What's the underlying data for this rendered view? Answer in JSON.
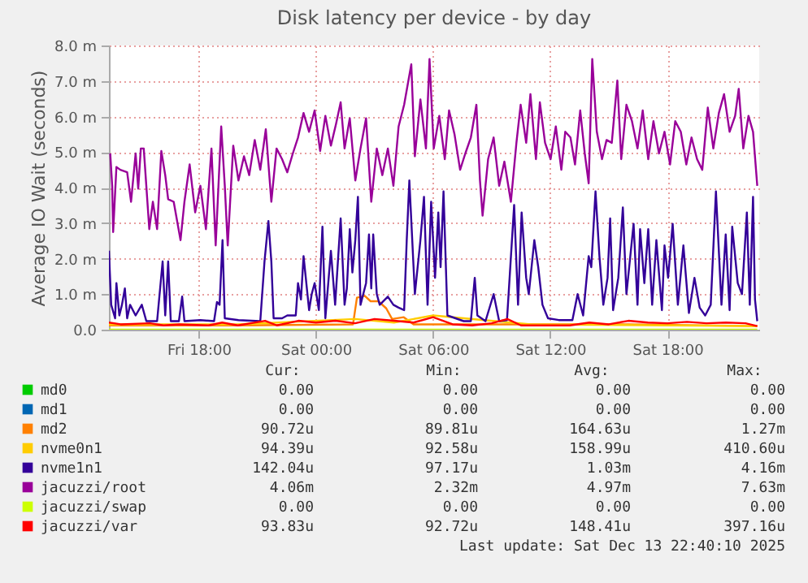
{
  "chart_data": {
    "type": "line",
    "title": "Disk latency per device - by day",
    "ylabel": "Average IO Wait (seconds)",
    "xlim": [
      "2025-12-12T13:24",
      "2025-12-13T22:42"
    ],
    "ylim": [
      0,
      8
    ],
    "xticks": [
      {
        "value": "2025-12-12T18:00",
        "label": "Fri 18:00"
      },
      {
        "value": "2025-12-13T00:00",
        "label": "Sat 00:00"
      },
      {
        "value": "2025-12-13T06:00",
        "label": "Sat 06:00"
      },
      {
        "value": "2025-12-13T12:00",
        "label": "Sat 12:00"
      },
      {
        "value": "2025-12-13T18:00",
        "label": "Sat 18:00"
      }
    ],
    "yticks": [
      {
        "value": 0,
        "label": "0.0"
      },
      {
        "value": 1,
        "label": "1.0 m"
      },
      {
        "value": 2,
        "label": "2.0 m"
      },
      {
        "value": 3,
        "label": "3.0 m"
      },
      {
        "value": 4,
        "label": "4.0 m"
      },
      {
        "value": 5,
        "label": "5.0 m"
      },
      {
        "value": 6,
        "label": "6.0 m"
      },
      {
        "value": 7,
        "label": "7.0 m"
      },
      {
        "value": 8,
        "label": "8.0 m"
      }
    ],
    "grid": true,
    "legend": "bottom",
    "marker": "none",
    "line_style": "solid",
    "series": [
      {
        "name": "md0",
        "color": "#00cc00"
      },
      {
        "name": "md1",
        "color": "#0066b3"
      },
      {
        "name": "md2",
        "color": "#ff8000",
        "x": [
          "2025-12-12T13:24",
          "2025-12-12T20:00",
          "2025-12-13T01:54",
          "2025-12-13T02:06",
          "2025-12-13T02:30",
          "2025-12-13T02:48",
          "2025-12-13T03:12",
          "2025-12-13T03:36",
          "2025-12-13T03:54",
          "2025-12-13T04:30",
          "2025-12-13T05:00",
          "2025-12-13T11:00",
          "2025-12-13T16:00",
          "2025-12-13T22:36"
        ],
        "values": [
          0.12,
          0.12,
          0.15,
          0.9,
          0.95,
          0.8,
          0.8,
          0.6,
          0.3,
          0.35,
          0.15,
          0.15,
          0.15,
          0.1
        ]
      },
      {
        "name": "nvme0n1",
        "color": "#ffcc00",
        "x": [
          "2025-12-12T13:24",
          "2025-12-12T20:00",
          "2025-12-13T02:00",
          "2025-12-13T04:00",
          "2025-12-13T06:00",
          "2025-12-13T11:00",
          "2025-12-13T22:36"
        ],
        "values": [
          0.15,
          0.15,
          0.3,
          0.2,
          0.4,
          0.15,
          0.1
        ]
      },
      {
        "name": "nvme1n1",
        "color": "#330099",
        "x": [
          "2025-12-12T13:24",
          "2025-12-12T13:31",
          "2025-12-12T13:43",
          "2025-12-12T13:47",
          "2025-12-12T13:56",
          "2025-12-12T14:04",
          "2025-12-12T14:13",
          "2025-12-12T14:20",
          "2025-12-12T14:29",
          "2025-12-12T14:46",
          "2025-12-12T15:05",
          "2025-12-12T15:19",
          "2025-12-12T15:52",
          "2025-12-12T16:09",
          "2025-12-12T16:17",
          "2025-12-12T16:26",
          "2025-12-12T16:34",
          "2025-12-12T16:59",
          "2025-12-12T17:09",
          "2025-12-12T17:16",
          "2025-12-12T18:05",
          "2025-12-12T18:47",
          "2025-12-12T18:56",
          "2025-12-12T19:04",
          "2025-12-12T19:13",
          "2025-12-12T19:20",
          "2025-12-12T20:02",
          "2025-12-12T21:09",
          "2025-12-12T21:22",
          "2025-12-12T21:34",
          "2025-12-12T21:43",
          "2025-12-12T21:50",
          "2025-12-12T22:16",
          "2025-12-12T22:32",
          "2025-12-12T22:58",
          "2025-12-12T23:05",
          "2025-12-12T23:14",
          "2025-12-12T23:22",
          "2025-12-12T23:39",
          "2025-12-12T23:47",
          "2025-12-12T23:56",
          "2025-12-13T00:09",
          "2025-12-13T00:20",
          "2025-12-13T00:29",
          "2025-12-13T00:46",
          "2025-12-13T00:59",
          "2025-12-13T01:16",
          "2025-12-13T01:28",
          "2025-12-13T01:35",
          "2025-12-13T01:44",
          "2025-12-13T01:52",
          "2025-12-13T02:01",
          "2025-12-13T02:09",
          "2025-12-13T02:17",
          "2025-12-13T02:34",
          "2025-12-13T02:43",
          "2025-12-13T02:50",
          "2025-12-13T02:56",
          "2025-12-13T03:07",
          "2025-12-13T03:16",
          "2025-12-13T03:41",
          "2025-12-13T03:58",
          "2025-12-13T04:14",
          "2025-12-13T04:31",
          "2025-12-13T04:39",
          "2025-12-13T04:47",
          "2025-12-13T05:04",
          "2025-12-13T05:21",
          "2025-12-13T05:32",
          "2025-12-13T05:43",
          "2025-12-13T05:54",
          "2025-12-13T06:06",
          "2025-12-13T06:16",
          "2025-12-13T06:23",
          "2025-12-13T06:32",
          "2025-12-13T06:44",
          "2025-12-13T07:09",
          "2025-12-13T07:34",
          "2025-12-13T07:56",
          "2025-12-13T08:08",
          "2025-12-13T08:16",
          "2025-12-13T08:41",
          "2025-12-13T09:06",
          "2025-12-13T09:23",
          "2025-12-13T09:47",
          "2025-12-13T10:09",
          "2025-12-13T10:21",
          "2025-12-13T10:32",
          "2025-12-13T10:46",
          "2025-12-13T10:54",
          "2025-12-13T11:11",
          "2025-12-13T11:23",
          "2025-12-13T11:36",
          "2025-12-13T11:53",
          "2025-12-13T12:26",
          "2025-12-13T13:08",
          "2025-12-13T13:24",
          "2025-12-13T13:41",
          "2025-12-13T13:58",
          "2025-12-13T14:06",
          "2025-12-13T14:19",
          "2025-12-13T14:31",
          "2025-12-13T14:43",
          "2025-12-13T14:56",
          "2025-12-13T15:04",
          "2025-12-13T15:13",
          "2025-12-13T15:29",
          "2025-12-13T15:43",
          "2025-12-13T15:54",
          "2025-12-13T16:16",
          "2025-12-13T16:28",
          "2025-12-13T16:36",
          "2025-12-13T16:49",
          "2025-12-13T17:01",
          "2025-12-13T17:13",
          "2025-12-13T17:26",
          "2025-12-13T17:43",
          "2025-12-13T17:51",
          "2025-12-13T18:02",
          "2025-12-13T18:16",
          "2025-12-13T18:32",
          "2025-12-13T18:49",
          "2025-12-13T19:06",
          "2025-12-13T19:23",
          "2025-12-13T19:39",
          "2025-12-13T19:56",
          "2025-12-13T20:13",
          "2025-12-13T20:29",
          "2025-12-13T20:46",
          "2025-12-13T20:59",
          "2025-12-13T21:11",
          "2025-12-13T21:19",
          "2025-12-13T21:36",
          "2025-12-13T21:49",
          "2025-12-13T22:04",
          "2025-12-13T22:13",
          "2025-12-13T22:23",
          "2025-12-13T22:29",
          "2025-12-13T22:36"
        ],
        "values": [
          2.22,
          0.7,
          0.32,
          1.31,
          0.4,
          0.7,
          1.16,
          0.32,
          0.7,
          0.4,
          0.7,
          0.24,
          0.24,
          1.92,
          0.4,
          1.92,
          0.24,
          0.24,
          0.93,
          0.24,
          0.27,
          0.24,
          0.78,
          0.7,
          2.52,
          0.32,
          0.27,
          0.24,
          1.92,
          3.06,
          1.92,
          0.32,
          0.32,
          0.4,
          0.4,
          1.31,
          0.85,
          2.07,
          0.55,
          1.0,
          1.31,
          0.55,
          2.9,
          0.32,
          2.22,
          0.7,
          3.13,
          0.7,
          1.16,
          2.83,
          1.61,
          2.52,
          3.74,
          0.7,
          1.31,
          2.68,
          1.16,
          2.68,
          1.0,
          0.7,
          0.93,
          0.7,
          0.62,
          0.55,
          2.52,
          4.2,
          1.0,
          2.52,
          3.74,
          0.7,
          3.6,
          1.46,
          3.3,
          1.76,
          3.89,
          0.4,
          0.32,
          0.24,
          0.24,
          1.46,
          0.4,
          0.24,
          1.0,
          0.24,
          0.27,
          3.51,
          0.7,
          3.3,
          1.46,
          1.0,
          2.52,
          1.76,
          0.7,
          0.32,
          0.27,
          0.27,
          1.0,
          0.4,
          2.07,
          1.76,
          3.89,
          2.07,
          0.7,
          1.46,
          3.13,
          0.55,
          1.46,
          3.44,
          1.0,
          2.98,
          0.7,
          2.83,
          1.31,
          2.83,
          0.7,
          2.52,
          0.55,
          2.37,
          1.46,
          2.98,
          0.7,
          2.37,
          0.47,
          1.46,
          0.62,
          0.4,
          0.7,
          3.89,
          0.7,
          2.68,
          0.55,
          2.9,
          1.31,
          1.0,
          3.3,
          0.7,
          3.74,
          0.85,
          0.24
        ]
      },
      {
        "name": "jacuzzi/root",
        "color": "#990099",
        "x": [
          "2025-12-12T13:28",
          "2025-12-12T13:34",
          "2025-12-12T13:37",
          "2025-12-12T13:47",
          "2025-12-12T13:59",
          "2025-12-12T14:20",
          "2025-12-12T14:32",
          "2025-12-12T14:46",
          "2025-12-12T14:54",
          "2025-12-12T15:02",
          "2025-12-12T15:11",
          "2025-12-12T15:28",
          "2025-12-12T15:39",
          "2025-12-12T15:52",
          "2025-12-12T16:05",
          "2025-12-12T16:17",
          "2025-12-12T16:26",
          "2025-12-12T16:43",
          "2025-12-12T17:04",
          "2025-12-12T17:16",
          "2025-12-12T17:32",
          "2025-12-12T17:49",
          "2025-12-12T18:05",
          "2025-12-12T18:22",
          "2025-12-12T18:39",
          "2025-12-12T18:52",
          "2025-12-12T19:09",
          "2025-12-12T19:20",
          "2025-12-12T19:29",
          "2025-12-12T19:46",
          "2025-12-12T20:02",
          "2025-12-12T20:19",
          "2025-12-12T20:35",
          "2025-12-12T20:52",
          "2025-12-12T21:09",
          "2025-12-12T21:26",
          "2025-12-12T21:43",
          "2025-12-12T21:59",
          "2025-12-12T22:16",
          "2025-12-12T22:32",
          "2025-12-12T22:49",
          "2025-12-12T23:05",
          "2025-12-12T23:22",
          "2025-12-12T23:39",
          "2025-12-12T23:56",
          "2025-12-13T00:13",
          "2025-12-13T00:29",
          "2025-12-13T00:46",
          "2025-12-13T01:02",
          "2025-12-13T01:16",
          "2025-12-13T01:28",
          "2025-12-13T01:44",
          "2025-12-13T02:01",
          "2025-12-13T02:17",
          "2025-12-13T02:34",
          "2025-12-13T02:50",
          "2025-12-13T03:07",
          "2025-12-13T03:24",
          "2025-12-13T03:41",
          "2025-12-13T03:58",
          "2025-12-13T04:14",
          "2025-12-13T04:31",
          "2025-12-13T04:53",
          "2025-12-13T05:04",
          "2025-12-13T05:21",
          "2025-12-13T05:38",
          "2025-12-13T05:49",
          "2025-12-13T06:02",
          "2025-12-13T06:19",
          "2025-12-13T06:36",
          "2025-12-13T06:49",
          "2025-12-13T07:06",
          "2025-12-13T07:23",
          "2025-12-13T07:39",
          "2025-12-13T07:56",
          "2025-12-13T08:13",
          "2025-12-13T08:24",
          "2025-12-13T08:32",
          "2025-12-13T08:49",
          "2025-12-13T09:06",
          "2025-12-13T09:23",
          "2025-12-13T09:39",
          "2025-12-13T09:59",
          "2025-12-13T10:16",
          "2025-12-13T10:29",
          "2025-12-13T10:46",
          "2025-12-13T10:59",
          "2025-12-13T11:16",
          "2025-12-13T11:28",
          "2025-12-13T11:44",
          "2025-12-13T12:01",
          "2025-12-13T12:17",
          "2025-12-13T12:34",
          "2025-12-13T12:46",
          "2025-12-13T13:02",
          "2025-12-13T13:16",
          "2025-12-13T13:32",
          "2025-12-13T13:46",
          "2025-12-13T13:58",
          "2025-12-13T14:09",
          "2025-12-13T14:23",
          "2025-12-13T14:39",
          "2025-12-13T14:53",
          "2025-12-13T15:09",
          "2025-12-13T15:26",
          "2025-12-13T15:38",
          "2025-12-13T15:54",
          "2025-12-13T16:11",
          "2025-12-13T16:28",
          "2025-12-13T16:44",
          "2025-12-13T17:01",
          "2025-12-13T17:17",
          "2025-12-13T17:34",
          "2025-12-13T17:51",
          "2025-12-13T18:08",
          "2025-12-13T18:24",
          "2025-12-13T18:41",
          "2025-12-13T18:58",
          "2025-12-13T19:14",
          "2025-12-13T19:31",
          "2025-12-13T19:47",
          "2025-12-13T20:04",
          "2025-12-13T20:21",
          "2025-12-13T20:38",
          "2025-12-13T20:54",
          "2025-12-13T21:11",
          "2025-12-13T21:28",
          "2025-12-13T21:39",
          "2025-12-13T21:53",
          "2025-12-13T22:09",
          "2025-12-13T22:23",
          "2025-12-13T22:36"
        ],
        "values": [
          4.96,
          4.05,
          2.75,
          4.58,
          4.5,
          4.43,
          3.6,
          4.96,
          3.97,
          5.1,
          5.1,
          2.83,
          3.6,
          2.83,
          5.03,
          4.35,
          3.67,
          3.6,
          2.52,
          3.6,
          4.65,
          3.3,
          4.05,
          2.83,
          5.1,
          2.37,
          5.72,
          4.05,
          2.37,
          5.18,
          4.2,
          4.88,
          4.35,
          5.34,
          4.5,
          5.64,
          3.6,
          5.1,
          4.8,
          4.43,
          4.96,
          5.41,
          6.1,
          5.57,
          6.17,
          5.03,
          6.02,
          5.18,
          5.8,
          6.4,
          5.1,
          5.95,
          4.2,
          5.1,
          5.95,
          3.6,
          5.1,
          4.35,
          5.1,
          4.05,
          5.72,
          6.33,
          7.47,
          4.88,
          6.48,
          5.1,
          7.62,
          5.1,
          6.02,
          4.8,
          6.17,
          5.49,
          4.5,
          4.96,
          5.41,
          6.33,
          4.2,
          3.21,
          4.8,
          5.41,
          4.05,
          4.73,
          3.6,
          5.26,
          6.33,
          5.26,
          6.63,
          4.8,
          6.4,
          5.26,
          4.8,
          5.72,
          4.5,
          5.57,
          5.41,
          4.65,
          6.17,
          4.96,
          4.12,
          7.62,
          5.57,
          4.8,
          5.34,
          5.26,
          7.01,
          4.8,
          6.33,
          5.87,
          5.1,
          6.17,
          4.8,
          5.87,
          4.96,
          5.57,
          4.65,
          5.87,
          5.57,
          4.65,
          5.41,
          4.8,
          4.5,
          6.25,
          5.1,
          6.1,
          6.63,
          5.57,
          6.02,
          6.78,
          5.1,
          6.02,
          5.57,
          4.05
        ]
      },
      {
        "name": "jacuzzi/swap",
        "color": "#ccff00",
        "x": [
          "2025-12-12T13:24",
          "2025-12-13T22:36"
        ],
        "values": [
          0,
          0
        ]
      },
      {
        "name": "jacuzzi/var",
        "color": "#ff0000",
        "x": [
          "2025-12-12T13:24",
          "2025-12-12T14:00",
          "2025-12-12T15:30",
          "2025-12-12T16:12",
          "2025-12-12T17:00",
          "2025-12-12T18:30",
          "2025-12-12T19:12",
          "2025-12-12T20:00",
          "2025-12-12T21:24",
          "2025-12-12T22:00",
          "2025-12-12T23:06",
          "2025-12-13T00:00",
          "2025-12-13T01:00",
          "2025-12-13T02:00",
          "2025-12-13T03:00",
          "2025-12-13T04:00",
          "2025-12-13T05:00",
          "2025-12-13T06:00",
          "2025-12-13T07:00",
          "2025-12-13T08:00",
          "2025-12-13T09:00",
          "2025-12-13T09:48",
          "2025-12-13T10:30",
          "2025-12-13T12:00",
          "2025-12-13T13:00",
          "2025-12-13T14:00",
          "2025-12-13T15:00",
          "2025-12-13T16:00",
          "2025-12-13T17:00",
          "2025-12-13T18:00",
          "2025-12-13T19:00",
          "2025-12-13T20:00",
          "2025-12-13T21:00",
          "2025-12-13T22:00",
          "2025-12-13T22:36"
        ],
        "values": [
          0.2,
          0.15,
          0.18,
          0.12,
          0.15,
          0.12,
          0.2,
          0.12,
          0.25,
          0.12,
          0.25,
          0.2,
          0.25,
          0.18,
          0.3,
          0.25,
          0.2,
          0.35,
          0.15,
          0.12,
          0.18,
          0.3,
          0.12,
          0.12,
          0.12,
          0.2,
          0.15,
          0.25,
          0.2,
          0.18,
          0.22,
          0.18,
          0.2,
          0.18,
          0.1
        ]
      }
    ],
    "annotations": [
      "Cur:",
      "Min:",
      "Avg:",
      "Max:",
      "0.00",
      "0.00",
      "0.00",
      "0.00",
      "0.00",
      "0.00",
      "0.00",
      "0.00",
      "90.72u",
      "89.81u",
      "164.63u",
      "1.27m",
      "94.39u",
      "92.58u",
      "158.99u",
      "410.60u",
      "142.04u",
      "97.17u",
      "1.03m",
      "4.16m",
      "4.06m",
      "2.32m",
      "4.97m",
      "7.63m",
      "0.00",
      "0.00",
      "0.00",
      "0.00",
      "93.83u",
      "92.72u",
      "148.41u",
      "397.16u",
      "Last update: Sat Dec 13 22:40:10 2025"
    ]
  }
}
